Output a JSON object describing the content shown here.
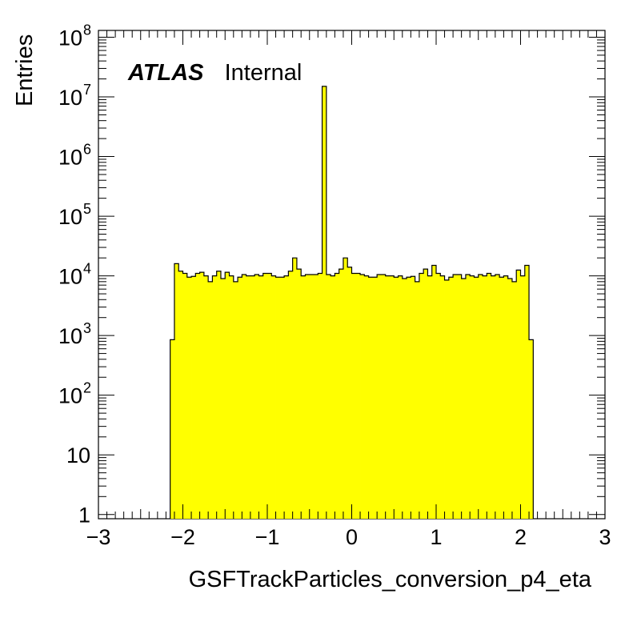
{
  "chart_data": {
    "type": "bar",
    "ylabel": "Entries",
    "xlabel": "GSFTrackParticles_conversion_p4_eta",
    "xlim": [
      -3,
      3
    ],
    "ylim": [
      0.85,
      130000000
    ],
    "y_scale": "log",
    "fill_color": "#ffff00",
    "line_color": "#000000",
    "legend_placement": "none",
    "grid": false,
    "annotation": {
      "bold": "ATLAS",
      "text": "Internal"
    },
    "x_ticks": [
      {
        "value": -3,
        "label": "−3"
      },
      {
        "value": -2,
        "label": "−2"
      },
      {
        "value": -1,
        "label": "−1"
      },
      {
        "value": 0,
        "label": "0"
      },
      {
        "value": 1,
        "label": "1"
      },
      {
        "value": 2,
        "label": "2"
      },
      {
        "value": 3,
        "label": "3"
      }
    ],
    "y_ticks": [
      {
        "value": 1,
        "base": "1",
        "exp": ""
      },
      {
        "value": 10,
        "base": "10",
        "exp": ""
      },
      {
        "value": 100,
        "base": "10",
        "exp": "2"
      },
      {
        "value": 1000,
        "base": "10",
        "exp": "3"
      },
      {
        "value": 10000,
        "base": "10",
        "exp": "4"
      },
      {
        "value": 100000,
        "base": "10",
        "exp": "5"
      },
      {
        "value": 1000000,
        "base": "10",
        "exp": "6"
      },
      {
        "value": 10000000,
        "base": "10",
        "exp": "7"
      },
      {
        "value": 100000000,
        "base": "10",
        "exp": "8"
      }
    ],
    "bin_edges": [
      -2.15,
      2.15
    ],
    "bin_count": 86,
    "values": [
      850,
      16000,
      12000,
      11000,
      9500,
      9800,
      11000,
      11500,
      10000,
      8000,
      10000,
      12000,
      9000,
      11500,
      10000,
      8000,
      9500,
      10500,
      10000,
      10000,
      10500,
      10000,
      11000,
      11000,
      10000,
      9500,
      9500,
      10000,
      12000,
      20000,
      13000,
      10000,
      10500,
      10500,
      10500,
      11000,
      15000000,
      10500,
      10000,
      11000,
      13000,
      20000,
      14000,
      11000,
      11000,
      10500,
      10000,
      9500,
      9500,
      10500,
      10500,
      10000,
      10000,
      9500,
      10000,
      9000,
      9500,
      9800,
      8000,
      11000,
      13000,
      10000,
      15000,
      11000,
      10000,
      8500,
      9500,
      10500,
      10500,
      9000,
      10500,
      10000,
      9500,
      10500,
      10000,
      11000,
      10000,
      10500,
      9500,
      10000,
      9000,
      8000,
      12500,
      10000,
      15000,
      850
    ]
  }
}
